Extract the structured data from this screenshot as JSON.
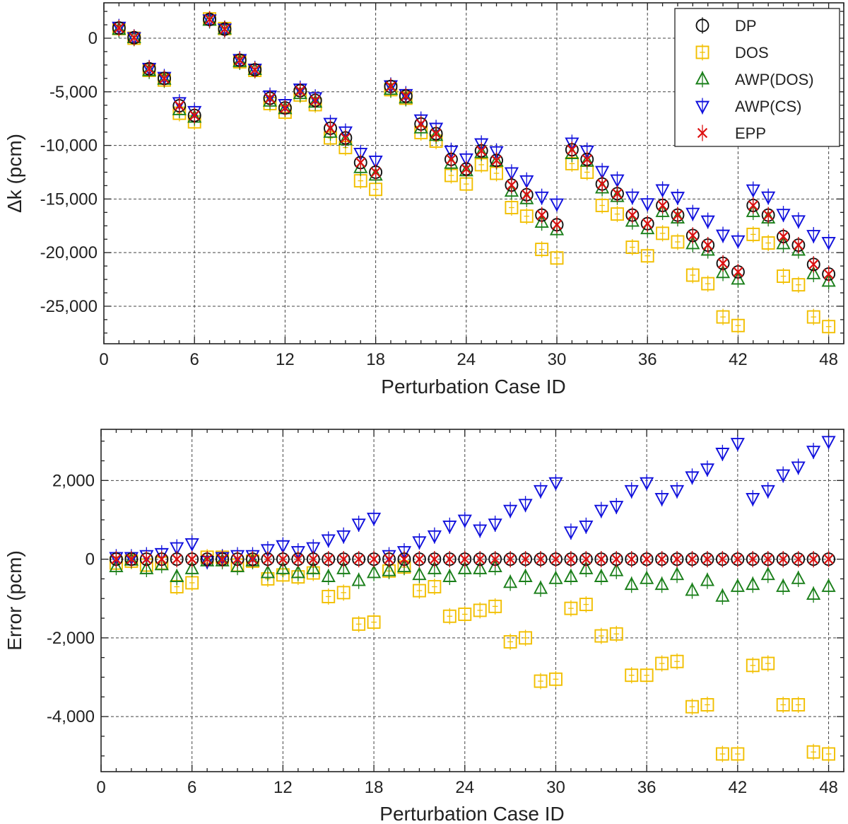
{
  "chart_data": [
    {
      "type": "scatter",
      "title": "",
      "xlabel": "Perturbation Case ID",
      "ylabel": "Δk (pcm)",
      "xlim": [
        0,
        49
      ],
      "ylim": [
        -28500,
        3300
      ],
      "xticks": [
        0,
        6,
        12,
        18,
        24,
        30,
        36,
        42,
        48
      ],
      "yticks": [
        0,
        -5000,
        -10000,
        -15000,
        -20000,
        -25000
      ],
      "xtick_labels": [
        "0",
        "6",
        "12",
        "18",
        "24",
        "30",
        "36",
        "42",
        "48"
      ],
      "ytick_labels": [
        "0",
        "-5,000",
        "-10,000",
        "-15,000",
        "-20,000",
        "-25,000"
      ],
      "grid": true,
      "legend_position": "top-right",
      "x": [
        1,
        2,
        3,
        4,
        5,
        6,
        7,
        8,
        9,
        10,
        11,
        12,
        13,
        14,
        15,
        16,
        17,
        18,
        19,
        20,
        21,
        22,
        23,
        24,
        25,
        26,
        27,
        28,
        29,
        30,
        31,
        32,
        33,
        34,
        35,
        36,
        37,
        38,
        39,
        40,
        41,
        42,
        43,
        44,
        45,
        46,
        47,
        48
      ],
      "series": [
        {
          "name": "DP",
          "marker": "circle",
          "color": "#111111",
          "values": [
            950,
            50,
            -2850,
            -3750,
            -6300,
            -7200,
            1750,
            850,
            -2050,
            -2950,
            -5600,
            -6500,
            -4900,
            -5800,
            -8400,
            -9300,
            -11600,
            -12500,
            -4500,
            -5400,
            -8000,
            -8900,
            -11300,
            -12200,
            -10500,
            -11400,
            -13700,
            -14600,
            -16500,
            -17400,
            -10400,
            -11300,
            -13600,
            -14500,
            -16500,
            -17300,
            -15600,
            -16500,
            -18400,
            -19300,
            -21000,
            -21800,
            -15600,
            -16500,
            -18500,
            -19300,
            -21100,
            -22000
          ]
        },
        {
          "name": "DOS",
          "marker": "square",
          "color": "#f2bf00",
          "values": [
            900,
            0,
            -3000,
            -3900,
            -7000,
            -7800,
            1800,
            900,
            -2200,
            -3000,
            -6100,
            -6900,
            -5300,
            -6200,
            -9300,
            -10200,
            -13300,
            -14100,
            -4800,
            -5600,
            -8800,
            -9600,
            -12800,
            -13600,
            -11800,
            -12600,
            -15800,
            -16600,
            -19700,
            -20500,
            -11700,
            -12500,
            -15600,
            -16400,
            -19500,
            -20300,
            -18200,
            -19000,
            -22100,
            -22900,
            -26000,
            -26800,
            -18300,
            -19100,
            -22200,
            -23000,
            -26000,
            -26900
          ]
        },
        {
          "name": "AWP(DOS)",
          "marker": "triangle-up",
          "color": "#1a7f1a",
          "values": [
            800,
            20,
            -3050,
            -3850,
            -6700,
            -7400,
            1650,
            850,
            -2200,
            -2950,
            -5900,
            -6600,
            -5200,
            -6000,
            -8800,
            -9500,
            -12100,
            -12800,
            -4800,
            -5600,
            -8400,
            -9100,
            -11700,
            -12400,
            -10700,
            -11500,
            -14300,
            -15000,
            -17200,
            -17900,
            -10800,
            -11500,
            -14000,
            -14800,
            -17100,
            -17800,
            -16200,
            -16800,
            -19200,
            -19800,
            -21900,
            -22500,
            -16200,
            -16800,
            -19200,
            -19800,
            -22000,
            -22700
          ]
        },
        {
          "name": "AWP(CS)",
          "marker": "triangle-down",
          "color": "#1010dd",
          "values": [
            1050,
            80,
            -2780,
            -3620,
            -5980,
            -6810,
            1740,
            890,
            -1960,
            -2860,
            -5360,
            -6160,
            -4710,
            -5520,
            -7910,
            -8710,
            -10710,
            -11430,
            -4410,
            -5220,
            -7590,
            -8370,
            -10500,
            -11230,
            -9820,
            -10560,
            -12520,
            -13270,
            -14790,
            -15430,
            -9750,
            -10490,
            -12400,
            -13190,
            -14780,
            -15410,
            -14110,
            -14810,
            -16300,
            -17020,
            -18340,
            -18870,
            -14120,
            -14780,
            -16400,
            -17000,
            -18370,
            -19020
          ]
        },
        {
          "name": "EPP",
          "marker": "x",
          "color": "#dd1010",
          "values": [
            950,
            50,
            -2850,
            -3750,
            -6300,
            -7200,
            1750,
            850,
            -2050,
            -2950,
            -5600,
            -6500,
            -4900,
            -5800,
            -8400,
            -9300,
            -11600,
            -12500,
            -4500,
            -5400,
            -8000,
            -8900,
            -11300,
            -12200,
            -10500,
            -11400,
            -13700,
            -14600,
            -16500,
            -17400,
            -10400,
            -11300,
            -13600,
            -14500,
            -16500,
            -17300,
            -15600,
            -16500,
            -18400,
            -19300,
            -21000,
            -21800,
            -15600,
            -16500,
            -18500,
            -19300,
            -21100,
            -22000
          ]
        }
      ]
    },
    {
      "type": "scatter",
      "title": "",
      "xlabel": "Perturbation Case ID",
      "ylabel": "Error (pcm)",
      "xlim": [
        0,
        49
      ],
      "ylim": [
        -5400,
        3300
      ],
      "xticks": [
        0,
        6,
        12,
        18,
        24,
        30,
        36,
        42,
        48
      ],
      "yticks": [
        2000,
        0,
        -2000,
        -4000
      ],
      "xtick_labels": [
        "0",
        "6",
        "12",
        "18",
        "24",
        "30",
        "36",
        "42",
        "48"
      ],
      "ytick_labels": [
        "2,000",
        "0",
        "-2,000",
        "-4,000"
      ],
      "grid": true,
      "legend_position": "none",
      "x": [
        1,
        2,
        3,
        4,
        5,
        6,
        7,
        8,
        9,
        10,
        11,
        12,
        13,
        14,
        15,
        16,
        17,
        18,
        19,
        20,
        21,
        22,
        23,
        24,
        25,
        26,
        27,
        28,
        29,
        30,
        31,
        32,
        33,
        34,
        35,
        36,
        37,
        38,
        39,
        40,
        41,
        42,
        43,
        44,
        45,
        46,
        47,
        48
      ],
      "series": [
        {
          "name": "DP",
          "marker": "circle",
          "color": "#111111",
          "values": [
            0,
            0,
            0,
            0,
            0,
            0,
            0,
            0,
            0,
            0,
            0,
            0,
            0,
            0,
            0,
            0,
            0,
            0,
            0,
            0,
            0,
            0,
            0,
            0,
            0,
            0,
            0,
            0,
            0,
            0,
            0,
            0,
            0,
            0,
            0,
            0,
            0,
            0,
            0,
            0,
            0,
            0,
            0,
            0,
            0,
            0,
            0,
            0
          ]
        },
        {
          "name": "DOS",
          "marker": "square",
          "color": "#f2bf00",
          "values": [
            -100,
            -50,
            -150,
            -100,
            -700,
            -600,
            50,
            50,
            -150,
            -50,
            -500,
            -400,
            -450,
            -350,
            -950,
            -850,
            -1650,
            -1600,
            -300,
            -200,
            -800,
            -700,
            -1450,
            -1400,
            -1300,
            -1200,
            -2100,
            -2000,
            -3100,
            -3050,
            -1250,
            -1150,
            -1950,
            -1900,
            -2950,
            -2950,
            -2650,
            -2600,
            -3750,
            -3700,
            -4950,
            -4950,
            -2700,
            -2650,
            -3700,
            -3700,
            -4900,
            -4950
          ]
        },
        {
          "name": "AWP(DOS)",
          "marker": "triangle-up",
          "color": "#1a7f1a",
          "values": [
            -200,
            -30,
            -250,
            -150,
            -450,
            -250,
            -50,
            -50,
            -200,
            -50,
            -350,
            -250,
            -350,
            -250,
            -450,
            -250,
            -550,
            -350,
            -300,
            -200,
            -400,
            -250,
            -450,
            -250,
            -250,
            -200,
            -600,
            -450,
            -750,
            -500,
            -450,
            -250,
            -450,
            -300,
            -650,
            -500,
            -650,
            -400,
            -800,
            -550,
            -950,
            -700,
            -650,
            -400,
            -700,
            -500,
            -900,
            -700
          ]
        },
        {
          "name": "AWP(CS)",
          "marker": "triangle-down",
          "color": "#1010dd",
          "values": [
            50,
            50,
            100,
            150,
            300,
            400,
            -50,
            50,
            100,
            100,
            250,
            350,
            200,
            300,
            500,
            600,
            900,
            1050,
            100,
            200,
            450,
            600,
            850,
            1000,
            750,
            900,
            1250,
            1400,
            1750,
            1950,
            700,
            850,
            1250,
            1350,
            1750,
            1950,
            1550,
            1750,
            2100,
            2300,
            2700,
            2950,
            1550,
            1750,
            2150,
            2350,
            2750,
            3000
          ]
        },
        {
          "name": "EPP",
          "marker": "x",
          "color": "#dd1010",
          "values": [
            0,
            0,
            0,
            0,
            0,
            0,
            0,
            0,
            0,
            0,
            0,
            0,
            0,
            0,
            0,
            0,
            0,
            0,
            0,
            0,
            0,
            0,
            0,
            0,
            0,
            0,
            0,
            0,
            0,
            0,
            0,
            0,
            0,
            0,
            0,
            0,
            0,
            0,
            0,
            0,
            0,
            0,
            0,
            0,
            0,
            0,
            0,
            0
          ]
        }
      ]
    }
  ]
}
